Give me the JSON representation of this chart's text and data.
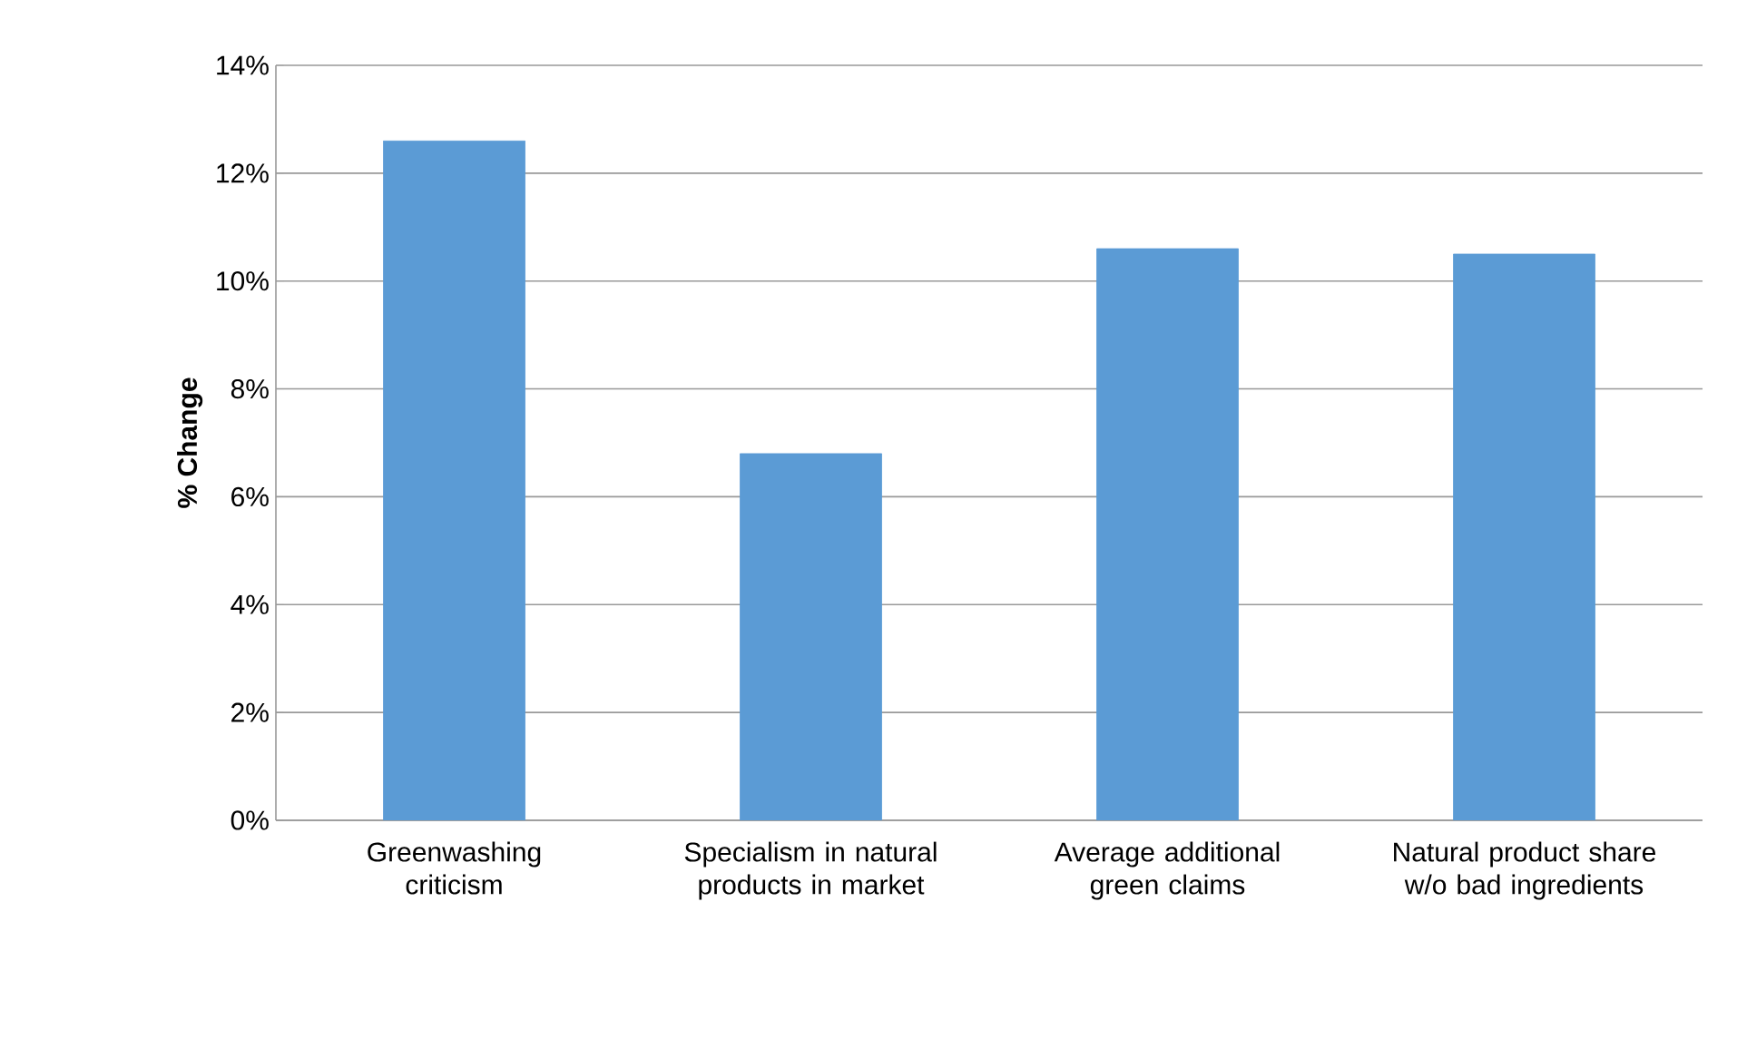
{
  "chart_data": {
    "type": "bar",
    "ylabel": "% Change",
    "categories": [
      "Greenwashing criticism",
      "Specialism in natural products in market",
      "Average additional green claims",
      "Natural product share w/o bad ingredients"
    ],
    "values": [
      12.6,
      6.8,
      10.6,
      10.5
    ],
    "color": "#5b9bd5",
    "ylim": [
      0,
      14
    ],
    "yticks": [
      {
        "value": 0,
        "label": "0%"
      },
      {
        "value": 2,
        "label": "2%"
      },
      {
        "value": 4,
        "label": "4%"
      },
      {
        "value": 6,
        "label": "6%"
      },
      {
        "value": 8,
        "label": "8%"
      },
      {
        "value": 10,
        "label": "10%"
      },
      {
        "value": 12,
        "label": "12%"
      },
      {
        "value": 14,
        "label": "14%"
      }
    ],
    "grid": "y"
  }
}
